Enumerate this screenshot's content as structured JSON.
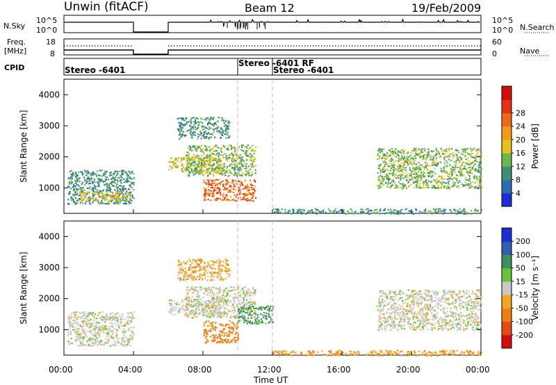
{
  "header": {
    "station": "Unwin (fitACF)",
    "beam": "Beam 12",
    "date": "19/Feb/2009"
  },
  "strips": {
    "nsky_label": "N.Sky",
    "nsky_ticks": [
      "10^5",
      "10^0"
    ],
    "nsearch_label": "N.Search",
    "freq_label": "Freq.",
    "freq_unit": "[MHz]",
    "freq_ticks": [
      "18",
      "8"
    ],
    "nave_label": "Nave",
    "nave_ticks": [
      "60",
      "0"
    ],
    "cpid_label": "CPID"
  },
  "chart_data": [
    {
      "type": "heatmap",
      "panel": "power",
      "ylabel": "Slant Range [km]",
      "xlabel": "Time UT",
      "ylim": [
        180,
        4500
      ],
      "xlim": [
        0,
        24
      ],
      "yticks": [
        1000,
        2000,
        3000,
        4000
      ],
      "xticks": [
        "00:00",
        "04:00",
        "08:00",
        "12:00",
        "16:00",
        "20:00",
        "00:00"
      ],
      "colorbar": {
        "label": "Power [dB]",
        "ticks": [
          "4",
          "8",
          "12",
          "16",
          "20",
          "24",
          "28"
        ],
        "colors": [
          "#1f2bd6",
          "#2d6db3",
          "#3f8f75",
          "#6ab84a",
          "#e8c21b",
          "#f39a1a",
          "#ef6a16",
          "#e43417",
          "#d30b0b"
        ]
      },
      "regions": [
        {
          "t0": 0.2,
          "t1": 4.0,
          "r0": 500,
          "r1": 1600,
          "level": 8
        },
        {
          "t0": 0.8,
          "t1": 3.8,
          "r0": 600,
          "r1": 900,
          "level": 16
        },
        {
          "t0": 6.0,
          "t1": 9.0,
          "r0": 1500,
          "r1": 2000,
          "level": 16
        },
        {
          "t0": 7.0,
          "t1": 11.0,
          "r0": 1400,
          "r1": 2400,
          "level": 12
        },
        {
          "t0": 8.0,
          "t1": 11.0,
          "r0": 600,
          "r1": 1300,
          "level": 24
        },
        {
          "t0": 6.5,
          "t1": 9.5,
          "r0": 2600,
          "r1": 3300,
          "level": 8
        },
        {
          "t0": 18.0,
          "t1": 24.0,
          "r0": 1000,
          "r1": 2300,
          "level": 12
        },
        {
          "t0": 12.0,
          "t1": 24.0,
          "r0": 180,
          "r1": 350,
          "level": 8
        }
      ]
    },
    {
      "type": "heatmap",
      "panel": "velocity",
      "ylabel": "Slant Range [km]",
      "xlabel": "Time UT",
      "ylim": [
        180,
        4500
      ],
      "xlim": [
        0,
        24
      ],
      "yticks": [
        1000,
        2000,
        3000,
        4000
      ],
      "xticks": [
        "00:00",
        "04:00",
        "08:00",
        "12:00",
        "16:00",
        "20:00",
        "00:00"
      ],
      "colorbar": {
        "label": "Velocity [m s⁻¹]",
        "ticks": [
          "200",
          "100",
          "50",
          "15",
          "-15",
          "-50",
          "-100",
          "-200"
        ],
        "colors": [
          "#1f2bd6",
          "#2f5fb0",
          "#3f8f5a",
          "#66c236",
          "#c9c9c9",
          "#f2a521",
          "#ef7e15",
          "#e84a14",
          "#d30b0b"
        ]
      },
      "regions": [
        {
          "t0": 0.2,
          "t1": 4.0,
          "r0": 500,
          "r1": 1600,
          "level": 0
        },
        {
          "t0": 6.0,
          "t1": 9.0,
          "r0": 1500,
          "r1": 2000,
          "level": 0
        },
        {
          "t0": 7.0,
          "t1": 11.0,
          "r0": 1400,
          "r1": 2400,
          "level": 0
        },
        {
          "t0": 8.0,
          "t1": 10.0,
          "r0": 600,
          "r1": 1300,
          "level": -40
        },
        {
          "t0": 10.0,
          "t1": 12.0,
          "r0": 1200,
          "r1": 1800,
          "level": 40
        },
        {
          "t0": 6.5,
          "t1": 9.5,
          "r0": 2600,
          "r1": 3300,
          "level": -20
        },
        {
          "t0": 18.0,
          "t1": 24.0,
          "r0": 1000,
          "r1": 2300,
          "level": 0
        },
        {
          "t0": 12.0,
          "t1": 24.0,
          "r0": 180,
          "r1": 350,
          "level": -25
        }
      ]
    }
  ],
  "cpid": {
    "labels": [
      "Stereo  -6401",
      "Stereo  -6401 RF",
      "Stereo  -6401"
    ]
  }
}
